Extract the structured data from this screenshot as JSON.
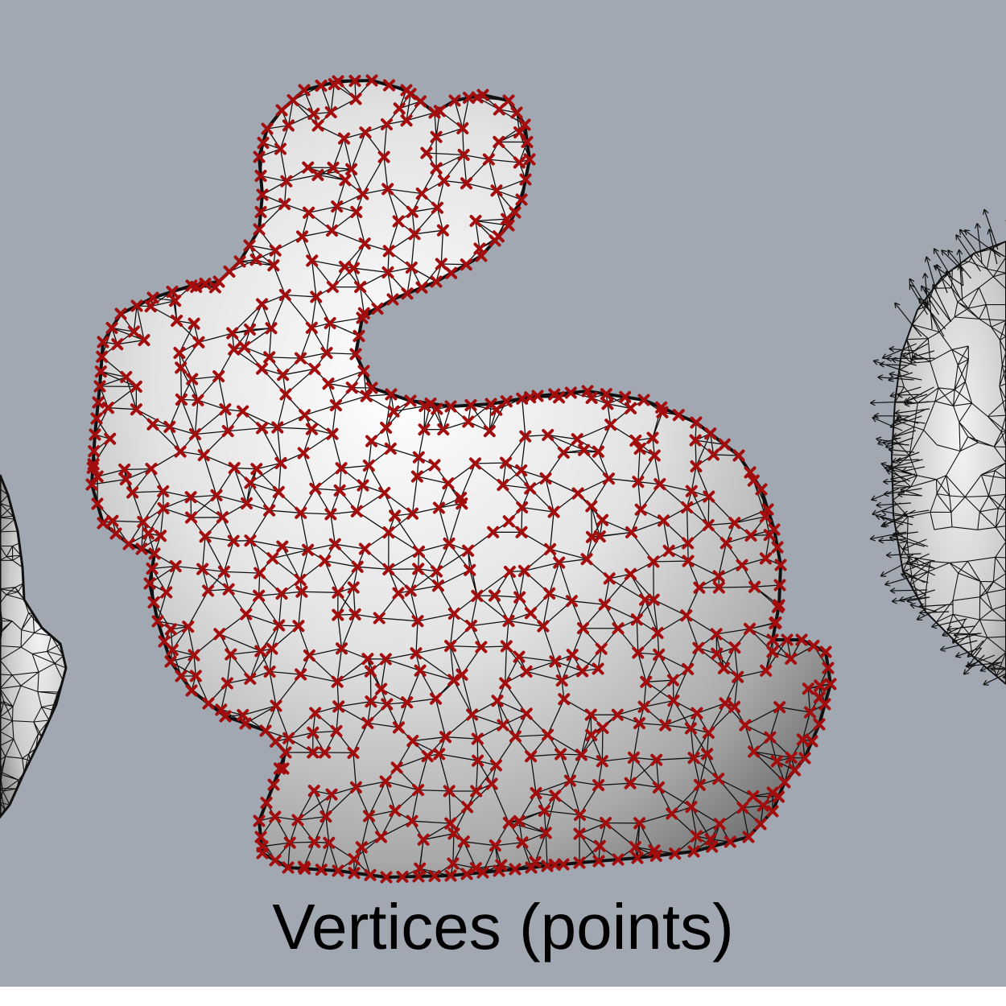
{
  "caption": "Vertices (points)",
  "colors": {
    "background": "#a2a8b2",
    "mesh_fill": "#dcdcdc",
    "wire": "#111111",
    "vertex_marker": "#a30d0d"
  }
}
